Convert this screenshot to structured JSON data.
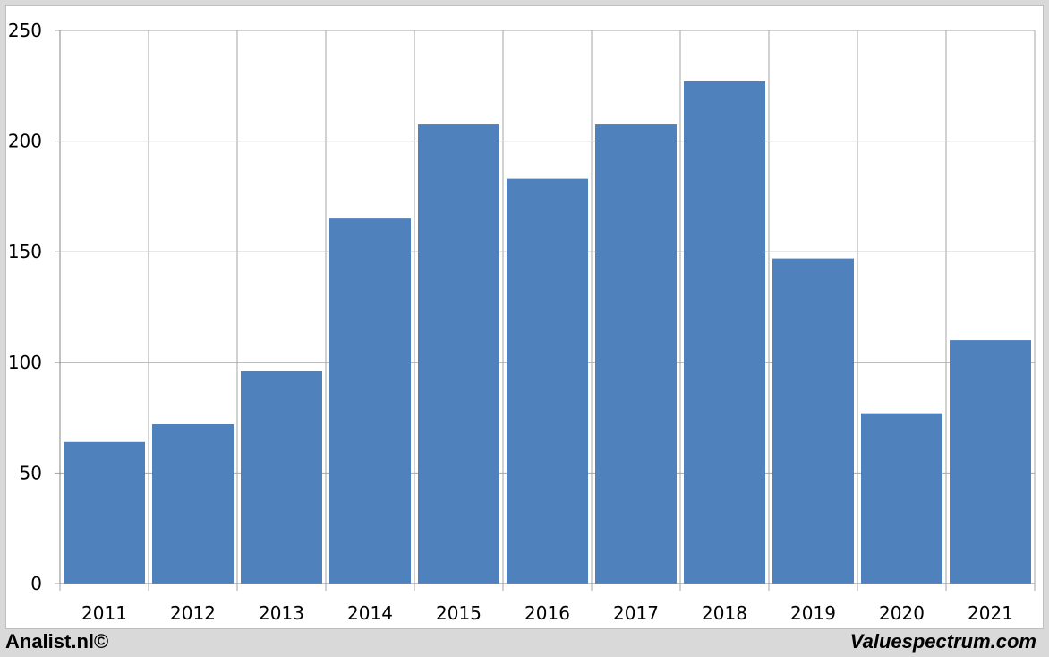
{
  "chart_data": {
    "type": "bar",
    "categories": [
      "2011",
      "2012",
      "2013",
      "2014",
      "2015",
      "2016",
      "2017",
      "2018",
      "2019",
      "2020",
      "2021"
    ],
    "values": [
      64,
      72,
      96,
      165,
      207.5,
      183,
      207.5,
      227,
      147,
      77,
      110
    ],
    "ylim": [
      0,
      250
    ],
    "yticks": [
      0,
      50,
      100,
      150,
      200,
      250
    ],
    "grid": true,
    "bar_color": "#4f81bd"
  },
  "footer": {
    "left": "Analist.nl©",
    "right": "Valuespectrum.com"
  }
}
